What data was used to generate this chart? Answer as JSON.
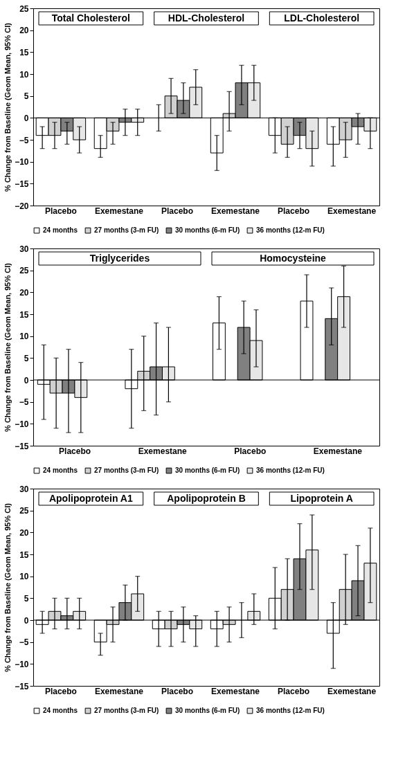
{
  "chart_data": [
    {
      "type": "bar",
      "ylabel": "% Change from Baseline (Geom Mean, 95% CI)",
      "annotations": [
        "Total Cholesterol",
        "HDL-Cholesterol",
        "LDL-Cholesterol"
      ],
      "categories": [
        "Placebo",
        "Exemestane",
        "Placebo",
        "Exemestane",
        "Placebo",
        "Exemestane"
      ],
      "ylim": [
        -20,
        25
      ],
      "yticks": [
        -20,
        -15,
        -10,
        -5,
        0,
        5,
        10,
        15,
        20,
        25
      ],
      "legend": "bottom",
      "ref_lines": [
        {
          "axis": "y",
          "value": 0
        }
      ],
      "series": [
        {
          "name": "24 months",
          "color": "#ffffff",
          "values": [
            -4,
            -7,
            0,
            -8,
            -4,
            -6
          ],
          "errors": [
            [
              -7,
              -2
            ],
            [
              -9,
              -4
            ],
            [
              -3,
              3
            ],
            [
              -12,
              -4
            ],
            [
              -8,
              0
            ],
            [
              -11,
              -2
            ]
          ]
        },
        {
          "name": "27 months (3-m FU)",
          "color": "#d0d0d0",
          "values": [
            -4,
            -3,
            5,
            1,
            -6,
            -5
          ],
          "errors": [
            [
              -7,
              -1
            ],
            [
              -6,
              -1
            ],
            [
              1,
              9
            ],
            [
              -3,
              6
            ],
            [
              -9,
              -2
            ],
            [
              -9,
              -1
            ]
          ]
        },
        {
          "name": "30 months (6-m FU)",
          "color": "#808080",
          "values": [
            -3,
            -1,
            4,
            8,
            -4,
            -2
          ],
          "errors": [
            [
              -6,
              -1
            ],
            [
              -4,
              2
            ],
            [
              1,
              8
            ],
            [
              3,
              12
            ],
            [
              -7,
              -1
            ],
            [
              -6,
              1
            ]
          ]
        },
        {
          "name": "36 months (12-m FU)",
          "color": "#e6e6e6",
          "values": [
            -5,
            -1,
            7,
            8,
            -7,
            -3
          ],
          "errors": [
            [
              -8,
              -2
            ],
            [
              -4,
              2
            ],
            [
              3,
              11
            ],
            [
              4,
              12
            ],
            [
              -11,
              -3
            ],
            [
              -7,
              0
            ]
          ]
        }
      ]
    },
    {
      "type": "bar",
      "ylabel": "% Change from Baseline (Geom Mean, 95% CI)",
      "annotations": [
        "Triglycerides",
        "Homocysteine"
      ],
      "categories": [
        "Placebo",
        "Exemestane",
        "Placebo",
        "Exemestane"
      ],
      "ylim": [
        -15,
        30
      ],
      "yticks": [
        -15,
        -10,
        -5,
        0,
        5,
        10,
        15,
        20,
        25,
        30
      ],
      "legend": "bottom",
      "ref_lines": [
        {
          "axis": "y",
          "value": 0
        }
      ],
      "series": [
        {
          "name": "24 months",
          "color": "#ffffff",
          "values": [
            -1,
            -2,
            13,
            18
          ],
          "errors": [
            [
              -9,
              8
            ],
            [
              -11,
              7
            ],
            [
              7,
              19
            ],
            [
              12,
              24
            ]
          ]
        },
        {
          "name": "27 months (3-m FU)",
          "color": "#d0d0d0",
          "values": [
            -3,
            2,
            null,
            null
          ],
          "errors": [
            [
              -11,
              5
            ],
            [
              -7,
              10
            ],
            null,
            null
          ]
        },
        {
          "name": "30 months (6-m FU)",
          "color": "#808080",
          "values": [
            -3,
            3,
            12,
            14
          ],
          "errors": [
            [
              -12,
              7
            ],
            [
              -8,
              13
            ],
            [
              6,
              18
            ],
            [
              8,
              21
            ]
          ]
        },
        {
          "name": "36 months (12-m FU)",
          "color": "#e6e6e6",
          "values": [
            -4,
            3,
            9,
            19
          ],
          "errors": [
            [
              -12,
              4
            ],
            [
              -5,
              12
            ],
            [
              3,
              16
            ],
            [
              12,
              26
            ]
          ]
        }
      ]
    },
    {
      "type": "bar",
      "ylabel": "% Change from Baseline (Geom Mean, 95% CI)",
      "annotations": [
        "Apolipoprotein A1",
        "Apolipoprotein B",
        "Lipoprotein A"
      ],
      "categories": [
        "Placebo",
        "Exemestane",
        "Placebo",
        "Exemestane",
        "Placebo",
        "Exemestane"
      ],
      "ylim": [
        -15,
        30
      ],
      "yticks": [
        -15,
        -10,
        -5,
        0,
        5,
        10,
        15,
        20,
        25,
        30
      ],
      "legend": "bottom",
      "ref_lines": [
        {
          "axis": "y",
          "value": 0
        }
      ],
      "series": [
        {
          "name": "24 months",
          "color": "#ffffff",
          "values": [
            -1,
            -5,
            -2,
            -2,
            5,
            -3
          ],
          "errors": [
            [
              -3,
              2
            ],
            [
              -8,
              -3
            ],
            [
              -6,
              2
            ],
            [
              -6,
              2
            ],
            [
              -2,
              12
            ],
            [
              -11,
              4
            ]
          ]
        },
        {
          "name": "27 months (3-m FU)",
          "color": "#d0d0d0",
          "values": [
            2,
            -1,
            -2,
            -1,
            7,
            7
          ],
          "errors": [
            [
              -2,
              5
            ],
            [
              -5,
              3
            ],
            [
              -6,
              2
            ],
            [
              -5,
              3
            ],
            [
              0,
              14
            ],
            [
              -1,
              15
            ]
          ]
        },
        {
          "name": "30 months (6-m FU)",
          "color": "#808080",
          "values": [
            1,
            4,
            -1,
            0,
            14,
            9
          ],
          "errors": [
            [
              -2,
              5
            ],
            [
              0,
              8
            ],
            [
              -5,
              3
            ],
            [
              -4,
              4
            ],
            [
              7,
              22
            ],
            [
              1,
              17
            ]
          ]
        },
        {
          "name": "36 months (12-m FU)",
          "color": "#e6e6e6",
          "values": [
            2,
            6,
            -2,
            2,
            16,
            13
          ],
          "errors": [
            [
              -2,
              5
            ],
            [
              2,
              10
            ],
            [
              -6,
              1
            ],
            [
              -1,
              6
            ],
            [
              7,
              24
            ],
            [
              4,
              21
            ]
          ]
        }
      ]
    }
  ]
}
